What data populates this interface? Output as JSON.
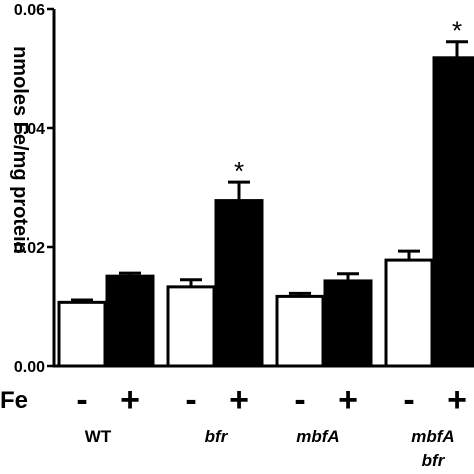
{
  "chart_data": {
    "type": "bar",
    "ylabel": "nmoles Fe/mg protein",
    "ylim": [
      0,
      0.06
    ],
    "y_ticks": [
      "0.00",
      "0.02",
      "0.04",
      "0.06"
    ],
    "y_tick_values": [
      0,
      0.02,
      0.04,
      0.06
    ],
    "treatment_label": "Fe",
    "groups": [
      {
        "label": "WT",
        "label_line2": "",
        "italic": false
      },
      {
        "label": "bfr",
        "label_line2": "",
        "italic": true
      },
      {
        "label": "mbfA",
        "label_line2": "",
        "italic": true
      },
      {
        "label": "mbfA",
        "label_line2": "bfr",
        "italic": true
      }
    ],
    "series": [
      {
        "sign": "-",
        "color": "#ffffff",
        "values": [
          0.0107,
          0.0133,
          0.0117,
          0.0178
        ],
        "errors": [
          0.0004,
          0.0012,
          0.0005,
          0.0015
        ],
        "stars": [
          "",
          "",
          "",
          ""
        ]
      },
      {
        "sign": "+",
        "color": "#000000",
        "values": [
          0.0151,
          0.0278,
          0.0143,
          0.0518
        ],
        "errors": [
          0.0005,
          0.0031,
          0.0012,
          0.0027
        ],
        "stars": [
          "",
          "*",
          "",
          "*"
        ]
      }
    ]
  }
}
